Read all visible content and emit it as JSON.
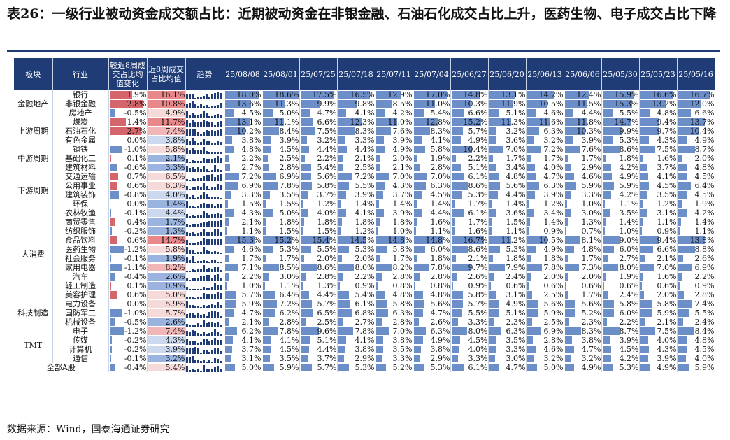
{
  "title": "表26：一级行业被动资金成交额占比：近期被动资金在非银金融、石油石化成交占比上升，医药生物、电子成交占比下降",
  "source": "数据来源：Wind，国泰海通证券研究",
  "colors": {
    "header_bg": "#1f3c76",
    "bar_blue": "#6d8fc9",
    "bar_red": "#d4656b"
  },
  "table": {
    "headers": {
      "sector": "板块",
      "industry": "行业",
      "change": "较近8周成交占比均值变化",
      "avg": "近8周成交占比均值",
      "trend": "趋势",
      "weeks": [
        "25/08/08",
        "25/08/01",
        "25/07/25",
        "25/07/18",
        "25/07/11",
        "25/07/04",
        "25/06/27",
        "25/06/20",
        "25/06/13",
        "25/06/06",
        "25/05/30",
        "25/05/23",
        "25/05/16"
      ]
    },
    "sectors": [
      {
        "name": "金融地产",
        "rows": [
          {
            "industry": "银行",
            "change": "1.9%",
            "avg": "16.1%",
            "weeks": [
              "18.0%",
              "18.6%",
              "17.5%",
              "16.5%",
              "12.9%",
              "17.0%",
              "14.8%",
              "13.1%",
              "14.2%",
              "12.4%",
              "15.9%",
              "16.6%",
              "16.7%"
            ]
          },
          {
            "industry": "非银金融",
            "change": "2.8%",
            "avg": "10.8%",
            "weeks": [
              "13.6%",
              "11.3%",
              "9.9%",
              "9.8%",
              "8.5%",
              "11.0%",
              "10.3%",
              "11.9%",
              "10.5%",
              "11.5%",
              "15.3%",
              "13.2%",
              "12.0%"
            ]
          },
          {
            "industry": "房地产",
            "change": "-0.5%",
            "avg": "4.9%",
            "weeks": [
              "4.5%",
              "5.0%",
              "4.7%",
              "4.1%",
              "4.2%",
              "5.4%",
              "6.6%",
              "5.1%",
              "4.6%",
              "4.4%",
              "5.5%",
              "4.8%",
              "6.6%"
            ]
          }
        ]
      },
      {
        "name": "上游周期",
        "rows": [
          {
            "industry": "煤炭",
            "change": "1.4%",
            "avg": "11.7%",
            "weeks": [
              "13.1%",
              "11.1%",
              "6.6%",
              "12.3%",
              "11.0%",
              "12.8%",
              "15.2%",
              "11.3%",
              "11.6%",
              "11.8%",
              "14.7%",
              "9.4%",
              "13.7%"
            ]
          },
          {
            "industry": "石油石化",
            "change": "2.7%",
            "avg": "7.4%",
            "weeks": [
              "10.2%",
              "8.4%",
              "7.5%",
              "8.3%",
              "7.6%",
              "8.3%",
              "5.7%",
              "3.2%",
              "6.3%",
              "10.3%",
              "9.9%",
              "9.7%",
              "10.4%"
            ]
          },
          {
            "industry": "有色金属",
            "change": "0.0%",
            "avg": "3.8%",
            "weeks": [
              "3.8%",
              "3.9%",
              "3.2%",
              "3.3%",
              "3.9%",
              "4.1%",
              "4.9%",
              "3.6%",
              "3.2%",
              "3.9%",
              "5.3%",
              "4.3%",
              "4.9%"
            ]
          }
        ]
      },
      {
        "name": "中游周期",
        "rows": [
          {
            "industry": "钢铁",
            "change": "-1.0%",
            "avg": "5.8%",
            "weeks": [
              "4.8%",
              "4.5%",
              "4.4%",
              "4.4%",
              "4.9%",
              "5.8%",
              "10.4%",
              "7.0%",
              "7.2%",
              "7.6%",
              "8.6%",
              "7.5%",
              "8.7%"
            ]
          },
          {
            "industry": "基础化工",
            "change": "0.1%",
            "avg": "2.1%",
            "weeks": [
              "2.2%",
              "2.5%",
              "2.2%",
              "2.1%",
              "2.0%",
              "1.9%",
              "2.2%",
              "1.7%",
              "1.7%",
              "1.7%",
              "1.8%",
              "1.6%",
              "2.0%"
            ]
          },
          {
            "industry": "建筑材料",
            "change": "-0.6%",
            "avg": "3.3%",
            "weeks": [
              "2.7%",
              "2.8%",
              "5.4%",
              "2.5%",
              "2.1%",
              "2.8%",
              "5.1%",
              "3.4%",
              "4.0%",
              "2.9%",
              "4.2%",
              "3.7%",
              "4.8%"
            ]
          }
        ]
      },
      {
        "name": "下游周期",
        "rows": [
          {
            "industry": "交通运输",
            "change": "0.7%",
            "avg": "6.5%",
            "weeks": [
              "7.2%",
              "6.9%",
              "5.6%",
              "7.2%",
              "7.0%",
              "7.0%",
              "6.1%",
              "4.8%",
              "4.7%",
              "4.6%",
              "4.9%",
              "4.1%",
              "4.5%"
            ]
          },
          {
            "industry": "公用事业",
            "change": "0.6%",
            "avg": "6.3%",
            "weeks": [
              "6.9%",
              "7.8%",
              "5.8%",
              "5.5%",
              "4.3%",
              "6.3%",
              "8.6%",
              "5.6%",
              "6.3%",
              "5.9%",
              "5.9%",
              "4.5%",
              "6.4%"
            ]
          },
          {
            "industry": "建筑装饰",
            "change": "-0.8%",
            "avg": "4.0%",
            "weeks": [
              "3.3%",
              "3.5%",
              "3.7%",
              "3.9%",
              "3.7%",
              "4.5%",
              "5.3%",
              "4.4%",
              "3.9%",
              "3.3%",
              "4.2%",
              "3.5%",
              "4.5%"
            ]
          },
          {
            "industry": "环保",
            "change": "0.0%",
            "avg": "1.4%",
            "weeks": [
              "1.5%",
              "1.5%",
              "1.2%",
              "1.4%",
              "1.4%",
              "1.4%",
              "1.7%",
              "1.4%",
              "1.2%",
              "1.0%",
              "1.1%",
              "1.2%",
              "1.9%"
            ]
          }
        ]
      },
      {
        "name": "大消费",
        "rows": [
          {
            "industry": "农林牧渔",
            "change": "-0.1%",
            "avg": "4.4%",
            "weeks": [
              "4.3%",
              "5.0%",
              "4.0%",
              "4.1%",
              "3.9%",
              "4.4%",
              "6.1%",
              "3.6%",
              "3.4%",
              "3.0%",
              "3.5%",
              "3.1%",
              "4.2%"
            ]
          },
          {
            "industry": "商贸零售",
            "change": "0.4%",
            "avg": "1.7%",
            "weeks": [
              "2.1%",
              "1.8%",
              "1.8%",
              "1.8%",
              "1.8%",
              "1.6%",
              "1.7%",
              "1.5%",
              "1.4%",
              "1.3%",
              "1.4%",
              "1.1%",
              "1.4%"
            ]
          },
          {
            "industry": "纺织服饰",
            "change": "-0.2%",
            "avg": "1.3%",
            "weeks": [
              "1.1%",
              "1.5%",
              "1.5%",
              "1.2%",
              "1.0%",
              "1.1%",
              "1.6%",
              "1.1%",
              "0.9%",
              "0.7%",
              "1.0%",
              "0.9%",
              "1.1%"
            ]
          },
          {
            "industry": "食品饮料",
            "change": "0.6%",
            "avg": "14.7%",
            "weeks": [
              "15.3%",
              "15.2%",
              "15.4%",
              "14.5%",
              "14.8%",
              "14.8%",
              "16.7%",
              "11.2%",
              "10.5%",
              "8.1%",
              "9.0%",
              "9.4%",
              "13.8%"
            ]
          },
          {
            "industry": "医药生物",
            "change": "-1.2%",
            "avg": "5.8%",
            "weeks": [
              "4.6%",
              "5.3%",
              "5.5%",
              "5.3%",
              "5.8%",
              "6.0%",
              "8.6%",
              "5.3%",
              "4.9%",
              "4.8%",
              "6.0%",
              "6.6%",
              "8.8%"
            ]
          },
          {
            "industry": "社会服务",
            "change": "-0.1%",
            "avg": "1.9%",
            "weeks": [
              "1.7%",
              "1.7%",
              "2.0%",
              "2.0%",
              "1.7%",
              "1.8%",
              "2.1%",
              "1.8%",
              "1.8%",
              "1.7%",
              "2.7%",
              "2.1%",
              "2.6%"
            ]
          },
          {
            "industry": "家用电器",
            "change": "-1.1%",
            "avg": "8.2%",
            "weeks": [
              "7.1%",
              "8.5%",
              "8.6%",
              "8.0%",
              "8.2%",
              "7.8%",
              "9.7%",
              "7.9%",
              "7.8%",
              "7.3%",
              "8.0%",
              "7.0%",
              "6.9%"
            ]
          },
          {
            "industry": "汽车",
            "change": "-0.4%",
            "avg": "2.6%",
            "weeks": [
              "2.2%",
              "3.0%",
              "2.8%",
              "2.2%",
              "2.8%",
              "2.8%",
              "2.6%",
              "2.4%",
              "2.0%",
              "2.0%",
              "1.9%",
              "1.6%",
              "2.2%"
            ]
          },
          {
            "industry": "轻工制造",
            "change": "0.1%",
            "avg": "0.9%",
            "weeks": [
              "1.0%",
              "1.1%",
              "1.3%",
              "0.9%",
              "0.8%",
              "0.8%",
              "0.9%",
              "0.6%",
              "0.6%",
              "0.6%",
              "0.6%",
              "0.6%",
              "0.9%"
            ]
          },
          {
            "industry": "美容护理",
            "change": "0.6%",
            "avg": "5.0%",
            "weeks": [
              "5.7%",
              "6.4%",
              "4.4%",
              "5.4%",
              "4.8%",
              "4.8%",
              "5.8%",
              "3.1%",
              "2.5%",
              "1.7%",
              "2.4%",
              "2.0%",
              "2.8%"
            ]
          }
        ]
      },
      {
        "name": "科技制造",
        "rows": [
          {
            "industry": "电力设备",
            "change": "0.0%",
            "avg": "5.9%",
            "weeks": [
              "5.9%",
              "7.2%",
              "5.7%",
              "6.1%",
              "5.8%",
              "5.6%",
              "5.7%",
              "4.9%",
              "5.6%",
              "5.6%",
              "5.8%",
              "5.8%",
              "7.4%"
            ]
          },
          {
            "industry": "国防军工",
            "change": "-1.0%",
            "avg": "5.7%",
            "weeks": [
              "4.7%",
              "6.2%",
              "6.5%",
              "6.8%",
              "6.3%",
              "4.7%",
              "5.5%",
              "5.1%",
              "5.9%",
              "5.2%",
              "6.0%",
              "5.9%",
              "5.5%"
            ]
          },
          {
            "industry": "机械设备",
            "change": "-0.5%",
            "avg": "2.6%",
            "weeks": [
              "2.1%",
              "2.8%",
              "2.5%",
              "2.7%",
              "2.8%",
              "2.6%",
              "3.3%",
              "2.3%",
              "2.5%",
              "2.3%",
              "2.2%",
              "2.1%",
              "2.4%"
            ]
          }
        ]
      },
      {
        "name": "TMT",
        "rows": [
          {
            "industry": "电子",
            "change": "-1.2%",
            "avg": "7.4%",
            "weeks": [
              "6.2%",
              "7.8%",
              "9.6%",
              "7.8%",
              "7.0%",
              "6.3%",
              "8.0%",
              "6.3%",
              "6.9%",
              "8.3%",
              "8.7%",
              "7.5%",
              "8.4%"
            ]
          },
          {
            "industry": "传媒",
            "change": "-0.2%",
            "avg": "4.3%",
            "weeks": [
              "4.1%",
              "4.1%",
              "5.1%",
              "4.1%",
              "3.8%",
              "4.9%",
              "4.5%",
              "3.5%",
              "2.8%",
              "3.8%",
              "3.9%",
              "4.0%",
              "4.8%"
            ]
          },
          {
            "industry": "计算机",
            "change": "-0.2%",
            "avg": "3.9%",
            "weeks": [
              "3.7%",
              "4.5%",
              "4.4%",
              "3.8%",
              "3.5%",
              "3.8%",
              "4.0%",
              "3.3%",
              "4.6%",
              "4.7%",
              "4.5%",
              "4.3%",
              "4.5%"
            ]
          },
          {
            "industry": "通信",
            "change": "-0.1%",
            "avg": "3.2%",
            "weeks": [
              "3.1%",
              "3.5%",
              "3.7%",
              "2.9%",
              "3.3%",
              "2.9%",
              "3.3%",
              "3.0%",
              "3.2%",
              "3.2%",
              "4.2%",
              "3.9%",
              "4.0%"
            ]
          }
        ]
      }
    ],
    "total": {
      "industry": "全部A股",
      "change": "-0.4%",
      "avg": "5.4%",
      "weeks": [
        "5.0%",
        "5.9%",
        "5.7%",
        "5.3%",
        "5.2%",
        "5.3%",
        "6.1%",
        "4.7%",
        "5.0%",
        "4.9%",
        "5.3%",
        "4.9%",
        "5.9%"
      ]
    }
  }
}
